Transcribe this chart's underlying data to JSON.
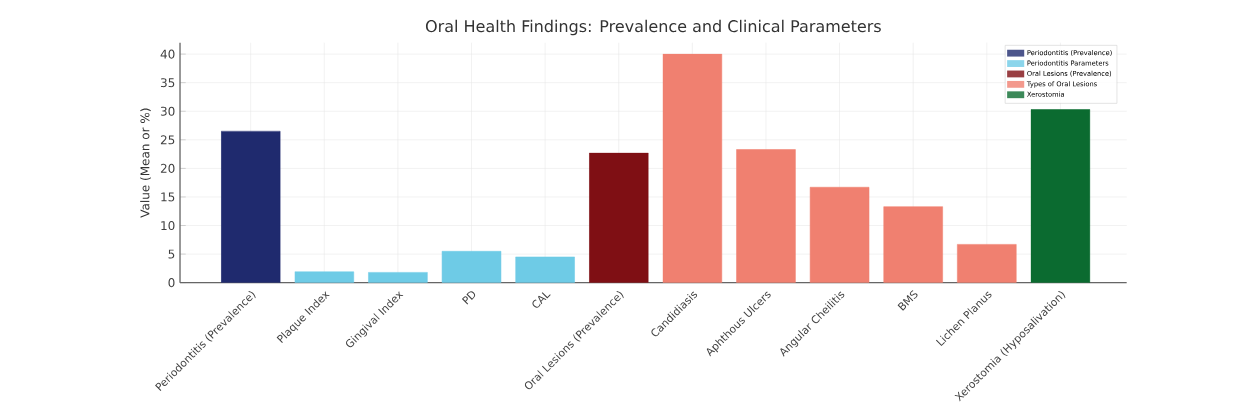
{
  "chart_data": {
    "type": "bar",
    "title": "Oral Health Findings: Prevalence and Clinical Parameters",
    "ylabel": "Value (Mean or %)",
    "categories": [
      "Periodontitis (Prevalence)",
      "Plaque Index",
      "Gingival Index",
      "PD",
      "CAL",
      "Oral Lesions (Prevalence)",
      "Candidiasis",
      "Aphthous Ulcers",
      "Angular Cheilitis",
      "BMS",
      "Lichen Planus",
      "Xerostomia (Hyposalivation)"
    ],
    "series": [
      {
        "name": "Periodontitis (Prevalence)",
        "color": "#1f2a6e",
        "values": [
          26.5,
          null,
          null,
          null,
          null,
          null,
          null,
          null,
          null,
          null,
          null,
          null
        ]
      },
      {
        "name": "Periodontitis Parameters",
        "color": "#6ecbe6",
        "values": [
          null,
          1.9,
          1.8,
          5.5,
          4.5,
          null,
          null,
          null,
          null,
          null,
          null,
          null
        ]
      },
      {
        "name": "Oral Lesions (Prevalence)",
        "color": "#7f0f14",
        "values": [
          null,
          null,
          null,
          null,
          null,
          22.7,
          null,
          null,
          null,
          null,
          null,
          null
        ]
      },
      {
        "name": "Types of Oral Lesions",
        "color": "#f08070",
        "values": [
          null,
          null,
          null,
          null,
          null,
          null,
          40,
          23.3,
          16.7,
          13.3,
          6.7,
          null
        ]
      },
      {
        "name": "Xerostomia",
        "color": "#0b6b30",
        "values": [
          null,
          null,
          null,
          null,
          null,
          null,
          null,
          null,
          null,
          null,
          null,
          30.3
        ]
      }
    ],
    "ylim": [
      0,
      42
    ],
    "yticks": [
      0,
      5,
      10,
      15,
      20,
      25,
      30,
      35,
      40
    ],
    "grid": true,
    "legend": "top right"
  }
}
